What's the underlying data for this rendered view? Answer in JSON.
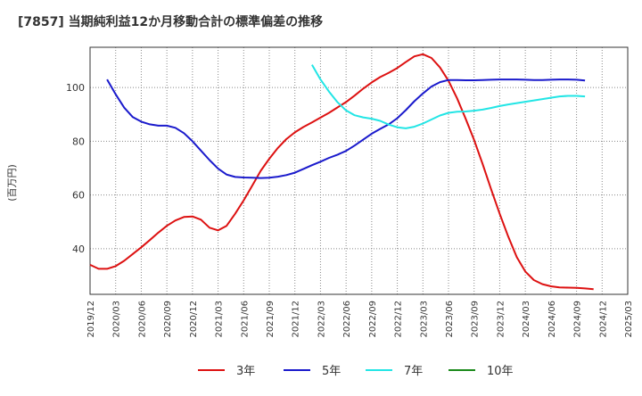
{
  "chart_data": {
    "type": "line",
    "title": "[7857]  当期純利益12か月移動合計の標準偏差の推移",
    "ylabel": "(百万円)",
    "xlabel": "",
    "ylim": [
      23,
      115
    ],
    "yticks": [
      40,
      60,
      80,
      100
    ],
    "x_ticks": [
      "2019/12",
      "2020/03",
      "2020/06",
      "2020/09",
      "2020/12",
      "2021/03",
      "2021/06",
      "2021/09",
      "2021/12",
      "2022/03",
      "2022/06",
      "2022/09",
      "2022/12",
      "2023/03",
      "2023/06",
      "2023/09",
      "2023/12",
      "2024/03",
      "2024/06",
      "2024/09",
      "2024/12",
      "2025/03"
    ],
    "grid": true,
    "legend_position": "bottom",
    "series": [
      {
        "name": "3年",
        "color": "#dd1111",
        "points": [
          [
            "2019/12",
            34
          ],
          [
            "2020/01",
            32.5
          ],
          [
            "2020/02",
            32.5
          ],
          [
            "2020/03",
            33.5
          ],
          [
            "2020/04",
            35.5
          ],
          [
            "2020/05",
            38
          ],
          [
            "2020/06",
            40.5
          ],
          [
            "2020/07",
            43.2
          ],
          [
            "2020/08",
            46
          ],
          [
            "2020/09",
            48.5
          ],
          [
            "2020/10",
            50.5
          ],
          [
            "2020/11",
            51.8
          ],
          [
            "2020/12",
            52
          ],
          [
            "2021/01",
            50.8
          ],
          [
            "2021/02",
            47.8
          ],
          [
            "2021/03",
            46.8
          ],
          [
            "2021/04",
            48.5
          ],
          [
            "2021/05",
            53
          ],
          [
            "2021/06",
            58
          ],
          [
            "2021/07",
            63.5
          ],
          [
            "2021/08",
            69
          ],
          [
            "2021/09",
            73.5
          ],
          [
            "2021/10",
            77.5
          ],
          [
            "2021/11",
            80.8
          ],
          [
            "2021/12",
            83.3
          ],
          [
            "2022/01",
            85.3
          ],
          [
            "2022/02",
            87
          ],
          [
            "2022/03",
            88.8
          ],
          [
            "2022/04",
            90.6
          ],
          [
            "2022/05",
            92.6
          ],
          [
            "2022/06",
            94.6
          ],
          [
            "2022/07",
            97
          ],
          [
            "2022/08",
            99.6
          ],
          [
            "2022/09",
            101.9
          ],
          [
            "2022/10",
            103.9
          ],
          [
            "2022/11",
            105.5
          ],
          [
            "2022/12",
            107.3
          ],
          [
            "2023/01",
            109.5
          ],
          [
            "2023/02",
            111.6
          ],
          [
            "2023/03",
            112.4
          ],
          [
            "2023/04",
            111
          ],
          [
            "2023/05",
            107.5
          ],
          [
            "2023/06",
            102.5
          ],
          [
            "2023/07",
            96
          ],
          [
            "2023/08",
            88.5
          ],
          [
            "2023/09",
            80.5
          ],
          [
            "2023/10",
            71.5
          ],
          [
            "2023/11",
            62
          ],
          [
            "2023/12",
            53
          ],
          [
            "2024/01",
            44.5
          ],
          [
            "2024/02",
            36.8
          ],
          [
            "2024/03",
            31.5
          ],
          [
            "2024/04",
            28.3
          ],
          [
            "2024/05",
            26.8
          ],
          [
            "2024/06",
            26
          ],
          [
            "2024/07",
            25.6
          ],
          [
            "2024/08",
            25.5
          ],
          [
            "2024/09",
            25.4
          ],
          [
            "2024/10",
            25.2
          ],
          [
            "2024/11",
            24.9
          ]
        ]
      },
      {
        "name": "5年",
        "color": "#1a1acc",
        "points": [
          [
            "2020/02",
            103
          ],
          [
            "2020/03",
            97.5
          ],
          [
            "2020/04",
            92.5
          ],
          [
            "2020/05",
            89
          ],
          [
            "2020/06",
            87.3
          ],
          [
            "2020/07",
            86.3
          ],
          [
            "2020/08",
            85.8
          ],
          [
            "2020/09",
            85.8
          ],
          [
            "2020/10",
            85
          ],
          [
            "2020/11",
            83
          ],
          [
            "2020/12",
            80
          ],
          [
            "2021/01",
            76.5
          ],
          [
            "2021/02",
            73
          ],
          [
            "2021/03",
            69.8
          ],
          [
            "2021/04",
            67.6
          ],
          [
            "2021/05",
            66.7
          ],
          [
            "2021/06",
            66.5
          ],
          [
            "2021/07",
            66.4
          ],
          [
            "2021/08",
            66.3
          ],
          [
            "2021/09",
            66.4
          ],
          [
            "2021/10",
            66.8
          ],
          [
            "2021/11",
            67.4
          ],
          [
            "2021/12",
            68.3
          ],
          [
            "2022/01",
            69.7
          ],
          [
            "2022/02",
            71.1
          ],
          [
            "2022/03",
            72.4
          ],
          [
            "2022/04",
            73.8
          ],
          [
            "2022/05",
            75
          ],
          [
            "2022/06",
            76.4
          ],
          [
            "2022/07",
            78.4
          ],
          [
            "2022/08",
            80.6
          ],
          [
            "2022/09",
            82.8
          ],
          [
            "2022/10",
            84.6
          ],
          [
            "2022/11",
            86.3
          ],
          [
            "2022/12",
            88.6
          ],
          [
            "2023/01",
            91.6
          ],
          [
            "2023/02",
            94.9
          ],
          [
            "2023/03",
            97.8
          ],
          [
            "2023/04",
            100.4
          ],
          [
            "2023/05",
            102
          ],
          [
            "2023/06",
            102.8
          ],
          [
            "2023/07",
            102.8
          ],
          [
            "2023/08",
            102.7
          ],
          [
            "2023/09",
            102.7
          ],
          [
            "2023/10",
            102.8
          ],
          [
            "2023/11",
            102.9
          ],
          [
            "2023/12",
            103
          ],
          [
            "2024/01",
            103
          ],
          [
            "2024/02",
            103
          ],
          [
            "2024/03",
            102.9
          ],
          [
            "2024/04",
            102.8
          ],
          [
            "2024/05",
            102.8
          ],
          [
            "2024/06",
            102.9
          ],
          [
            "2024/07",
            103
          ],
          [
            "2024/08",
            103
          ],
          [
            "2024/09",
            102.9
          ],
          [
            "2024/10",
            102.6
          ]
        ]
      },
      {
        "name": "7年",
        "color": "#22e5e5",
        "points": [
          [
            "2022/02",
            108.5
          ],
          [
            "2022/03",
            103
          ],
          [
            "2022/04",
            98.5
          ],
          [
            "2022/05",
            94.5
          ],
          [
            "2022/06",
            91.5
          ],
          [
            "2022/07",
            89.7
          ],
          [
            "2022/08",
            88.9
          ],
          [
            "2022/09",
            88.4
          ],
          [
            "2022/10",
            87.6
          ],
          [
            "2022/11",
            86.2
          ],
          [
            "2022/12",
            85.2
          ],
          [
            "2023/01",
            84.8
          ],
          [
            "2023/02",
            85.4
          ],
          [
            "2023/03",
            86.6
          ],
          [
            "2023/04",
            88.1
          ],
          [
            "2023/05",
            89.6
          ],
          [
            "2023/06",
            90.6
          ],
          [
            "2023/07",
            91
          ],
          [
            "2023/08",
            91.1
          ],
          [
            "2023/09",
            91.4
          ],
          [
            "2023/10",
            91.8
          ],
          [
            "2023/11",
            92.4
          ],
          [
            "2023/12",
            93.1
          ],
          [
            "2024/01",
            93.7
          ],
          [
            "2024/02",
            94.2
          ],
          [
            "2024/03",
            94.7
          ],
          [
            "2024/04",
            95.2
          ],
          [
            "2024/05",
            95.7
          ],
          [
            "2024/06",
            96.2
          ],
          [
            "2024/07",
            96.7
          ],
          [
            "2024/08",
            96.9
          ],
          [
            "2024/09",
            96.9
          ],
          [
            "2024/10",
            96.7
          ]
        ]
      },
      {
        "name": "10年",
        "color": "#1b8a1b",
        "points": []
      }
    ]
  }
}
